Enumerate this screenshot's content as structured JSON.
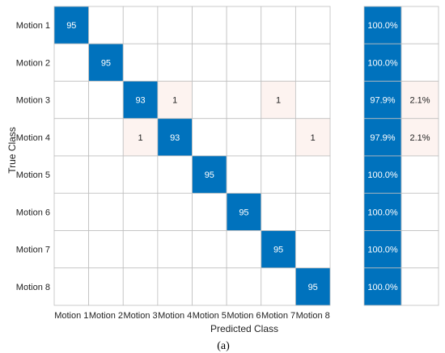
{
  "chart_data": {
    "type": "heatmap",
    "title": "",
    "xlabel": "Predicted Class",
    "ylabel": "True Class",
    "panel_label": "(a)",
    "classes": [
      "Motion 1",
      "Motion 2",
      "Motion 3",
      "Motion 4",
      "Motion 5",
      "Motion 6",
      "Motion 7",
      "Motion 8"
    ],
    "matrix": [
      [
        95,
        0,
        0,
        0,
        0,
        0,
        0,
        0
      ],
      [
        0,
        95,
        0,
        0,
        0,
        0,
        0,
        0
      ],
      [
        0,
        0,
        93,
        1,
        0,
        0,
        1,
        0
      ],
      [
        0,
        0,
        1,
        93,
        0,
        0,
        0,
        1
      ],
      [
        0,
        0,
        0,
        0,
        95,
        0,
        0,
        0
      ],
      [
        0,
        0,
        0,
        0,
        0,
        95,
        0,
        0
      ],
      [
        0,
        0,
        0,
        0,
        0,
        0,
        95,
        0
      ],
      [
        0,
        0,
        0,
        0,
        0,
        0,
        0,
        95
      ]
    ],
    "row_summary": [
      [
        "100.0%",
        ""
      ],
      [
        "100.0%",
        ""
      ],
      [
        "97.9%",
        "2.1%"
      ],
      [
        "97.9%",
        "2.1%"
      ],
      [
        "100.0%",
        ""
      ],
      [
        "100.0%",
        ""
      ],
      [
        "100.0%",
        ""
      ],
      [
        "100.0%",
        ""
      ]
    ],
    "colors": {
      "correct": "#0072bd",
      "incorrect_light": "#fdf3f0",
      "empty": "#ffffff",
      "grid": "#bfbfbf",
      "text_on_dark": "#ffffff",
      "text_on_light": "#222222"
    }
  }
}
